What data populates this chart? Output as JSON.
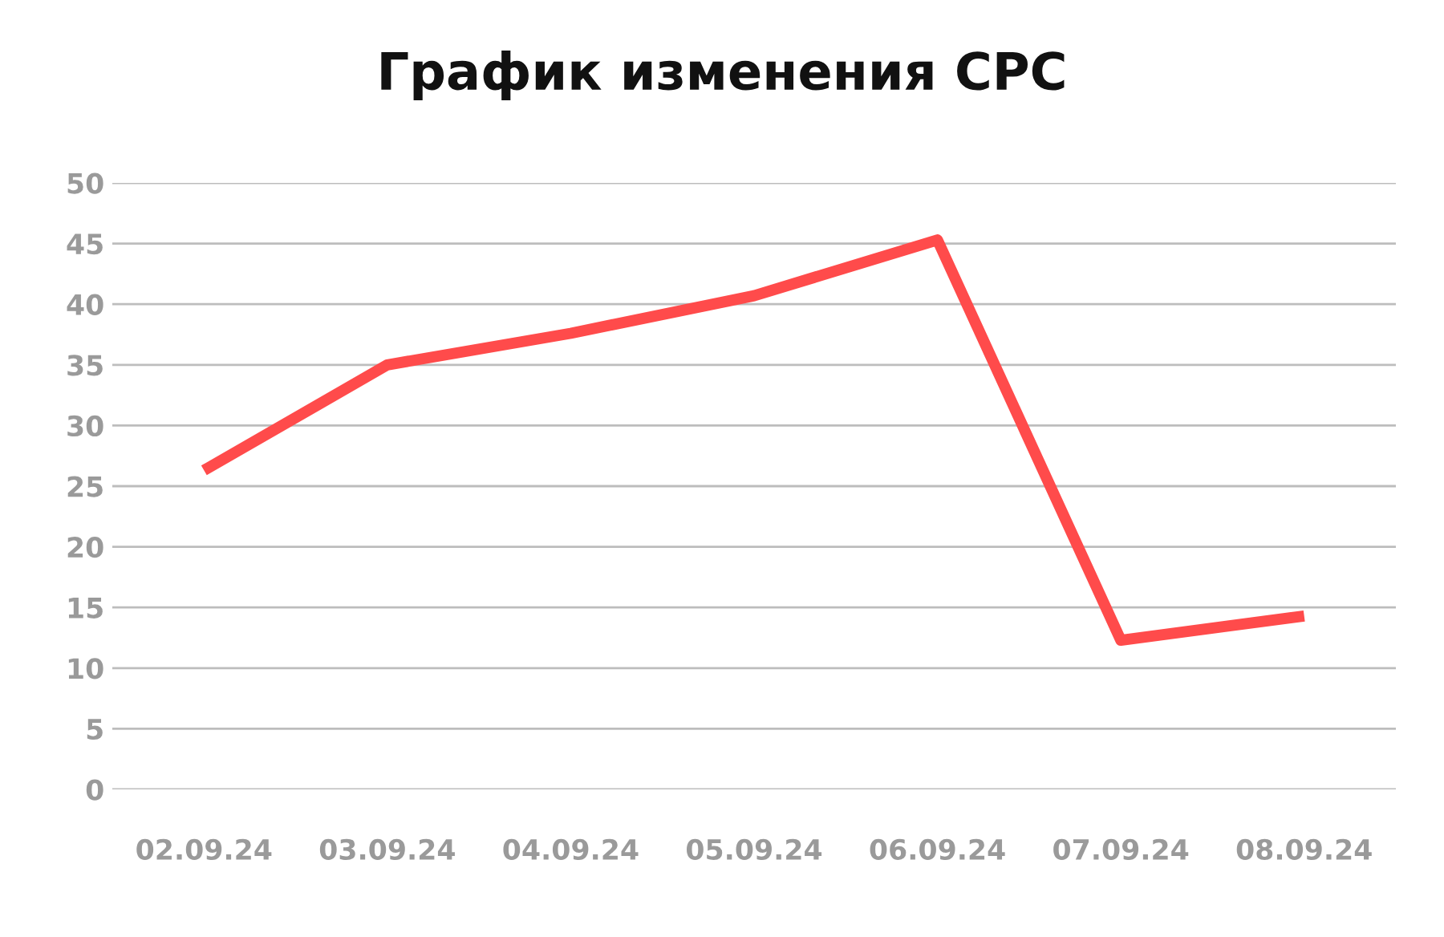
{
  "chart_data": {
    "type": "line",
    "title": "График изменения CPC",
    "categories": [
      "02.09.24",
      "03.09.24",
      "04.09.24",
      "05.09.24",
      "06.09.24",
      "07.09.24",
      "08.09.24"
    ],
    "series": [
      {
        "color": "#ff4b4b",
        "values": [
          26.3,
          35.0,
          37.6,
          40.7,
          45.3,
          12.3,
          14.3
        ]
      }
    ],
    "ylim": [
      0,
      50
    ],
    "yticks": [
      0,
      5,
      10,
      15,
      20,
      25,
      30,
      35,
      40,
      45,
      50
    ],
    "grid": "y",
    "legend": false,
    "marker": "none",
    "line_style": "solid"
  }
}
